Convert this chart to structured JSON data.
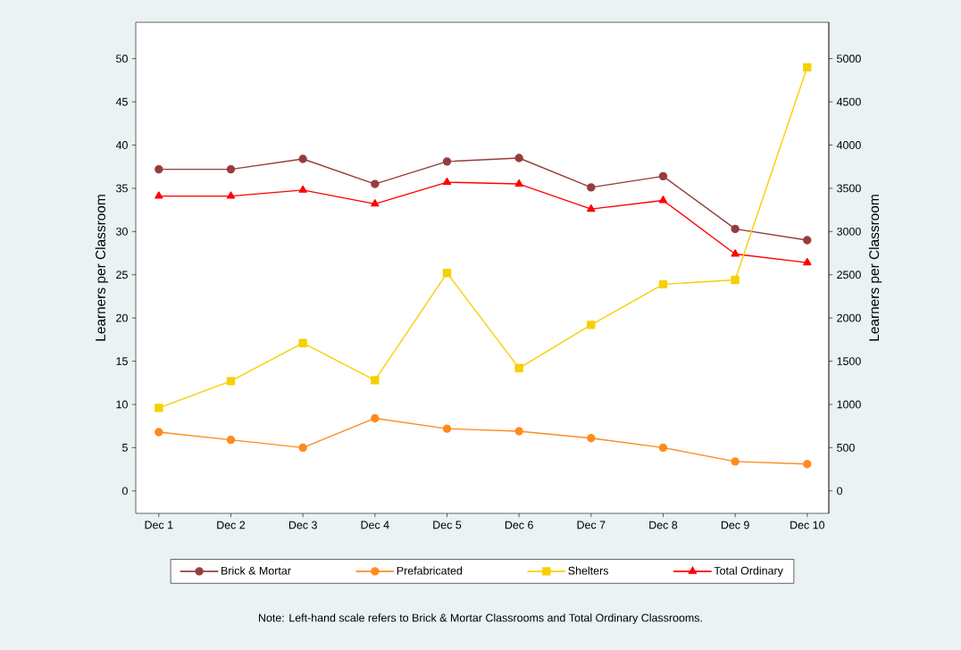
{
  "chart_data": {
    "type": "line",
    "categories": [
      "Dec 1",
      "Dec 2",
      "Dec 3",
      "Dec 4",
      "Dec 5",
      "Dec 6",
      "Dec 7",
      "Dec 8",
      "Dec 9",
      "Dec 10"
    ],
    "series": [
      {
        "name": "Brick & Mortar",
        "color": "#963c3c",
        "marker": "circle",
        "axis": "y",
        "values": [
          37.2,
          37.2,
          38.4,
          35.5,
          38.1,
          38.5,
          35.1,
          36.4,
          30.3,
          29.0
        ]
      },
      {
        "name": "Prefabricated",
        "color": "#ff8a1c",
        "marker": "circle",
        "axis": "y2",
        "values": [
          680,
          590,
          500,
          840,
          720,
          690,
          610,
          500,
          340,
          310
        ]
      },
      {
        "name": "Shelters",
        "color": "#f7d000",
        "marker": "square",
        "axis": "y2",
        "values": [
          960,
          1270,
          1710,
          1280,
          2520,
          1420,
          1920,
          2390,
          2440,
          4900
        ]
      },
      {
        "name": "Total Ordinary",
        "color": "#ff0000",
        "marker": "triangle",
        "axis": "y",
        "values": [
          34.1,
          34.1,
          34.8,
          33.2,
          35.7,
          35.5,
          32.6,
          33.6,
          27.4,
          26.4
        ]
      }
    ],
    "ylabel": "Learners per Classroom",
    "y2label": "Learners per Classroom",
    "ylim": [
      -2.6,
      54.2
    ],
    "yticks": [
      0,
      5,
      10,
      15,
      20,
      25,
      30,
      35,
      40,
      45,
      50
    ],
    "y2lim": [
      -260,
      5420
    ],
    "y2ticks": [
      0,
      500,
      1000,
      1500,
      2000,
      2500,
      3000,
      3500,
      4000,
      4500,
      5000
    ],
    "legend": "bottom",
    "annotations": [
      "Note: Left-hand scale refers to Brick & Mortar Classrooms and Total Ordinary Classrooms."
    ]
  }
}
